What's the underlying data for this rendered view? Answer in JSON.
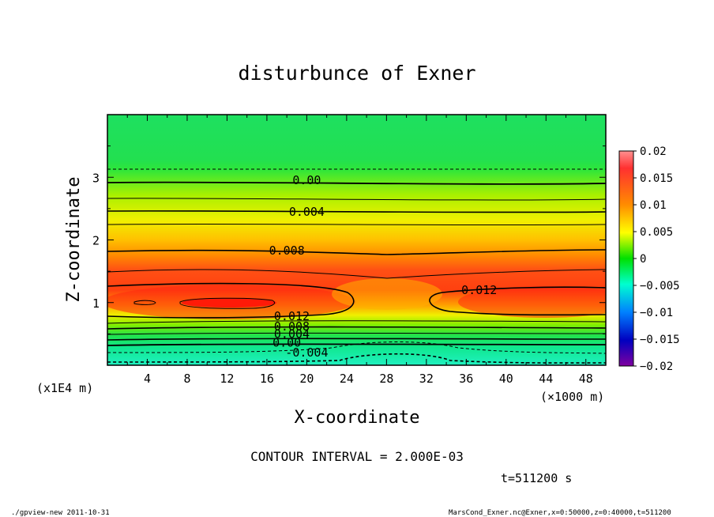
{
  "chart_data": {
    "type": "heatmap",
    "title": "disturbunce of Exner",
    "xlabel": "X-coordinate",
    "ylabel": "Z-coordinate",
    "x_units": "(×1000 m)",
    "z_units": "(x1E4 m)",
    "xlim": [
      0,
      50
    ],
    "ylim": [
      0,
      4
    ],
    "x_ticks": [
      "4",
      "8",
      "12",
      "16",
      "20",
      "24",
      "28",
      "32",
      "36",
      "40",
      "44",
      "48"
    ],
    "x_tick_values": [
      4,
      8,
      12,
      16,
      20,
      24,
      28,
      32,
      36,
      40,
      44,
      48
    ],
    "y_ticks": [
      "1",
      "2",
      "3"
    ],
    "y_tick_values": [
      1,
      2,
      3
    ],
    "colorbar": {
      "range": [
        -0.02,
        0.02
      ],
      "labels": [
        "0.02",
        "0.015",
        "0.01",
        "0.005",
        "0",
        "−0.005",
        "−0.01",
        "−0.015",
        "−0.02"
      ],
      "label_values": [
        0.02,
        0.015,
        0.01,
        0.005,
        0,
        -0.005,
        -0.01,
        -0.015,
        -0.02
      ]
    },
    "contour_interval": 0.002,
    "contour_labels": [
      {
        "text": "0.00",
        "x": 20,
        "z": 2.95
      },
      {
        "text": "0.004",
        "x": 20,
        "z": 2.45
      },
      {
        "text": "0.008",
        "x": 18,
        "z": 1.83
      },
      {
        "text": "0.012",
        "x": 37.3,
        "z": 1.2
      },
      {
        "text": "0.012",
        "x": 18.5,
        "z": 0.78
      },
      {
        "text": "0.008",
        "x": 18.5,
        "z": 0.62
      },
      {
        "text": "0.004",
        "x": 18.5,
        "z": 0.5
      },
      {
        "text": "0.00",
        "x": 18,
        "z": 0.36
      },
      {
        "text": "-0.004",
        "x": 20,
        "z": 0.2
      }
    ]
  },
  "footer": {
    "contour_interval_text": "CONTOUR INTERVAL = 2.000E-03",
    "time_text": "t=511200 s",
    "program_text": "./gpview-new   2011-10-31",
    "file_text": "MarsCond_Exner.nc@Exner,x=0:50000,z=0:40000,t=511200"
  }
}
